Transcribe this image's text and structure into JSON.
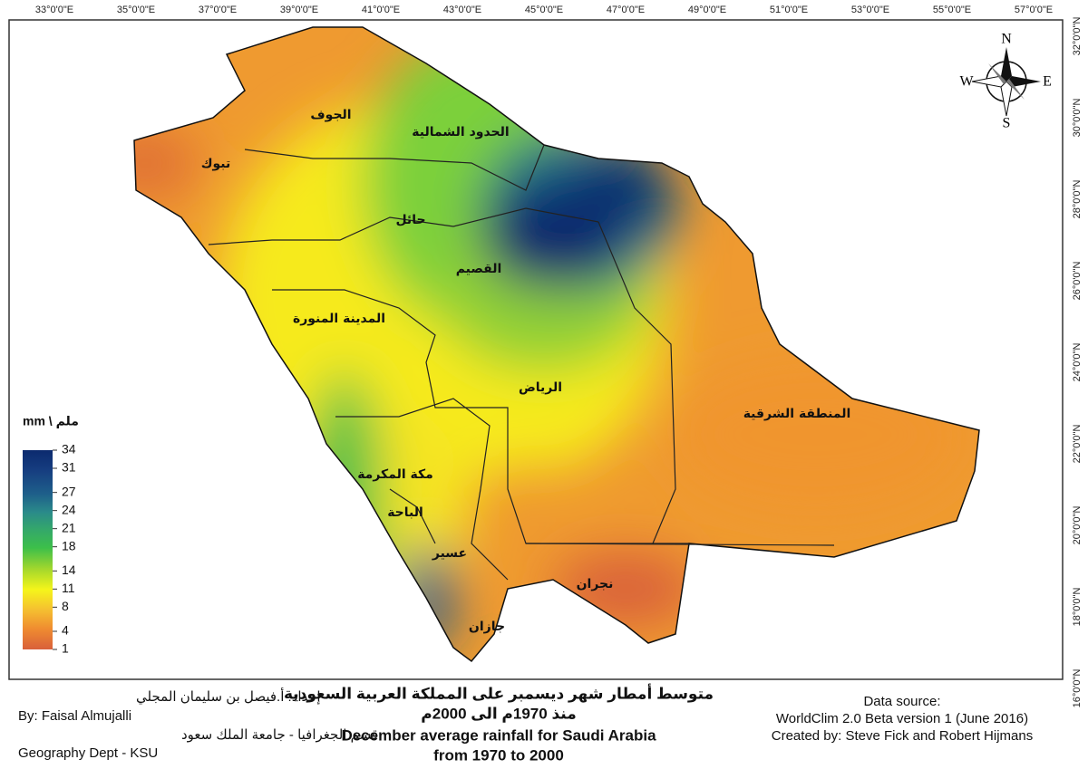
{
  "axes": {
    "longitudes": [
      "33°0'0\"E",
      "35°0'0\"E",
      "37°0'0\"E",
      "39°0'0\"E",
      "41°0'0\"E",
      "43°0'0\"E",
      "45°0'0\"E",
      "47°0'0\"E",
      "49°0'0\"E",
      "51°0'0\"E",
      "53°0'0\"E",
      "55°0'0\"E",
      "57°0'0\"E"
    ],
    "latitudes": [
      "32°0'0\"N",
      "30°0'0\"N",
      "28°0'0\"N",
      "26°0'0\"N",
      "24°0'0\"N",
      "22°0'0\"N",
      "20°0'0\"N",
      "18°0'0\"N",
      "16°0'0\"N"
    ]
  },
  "regions": [
    "الجوف",
    "تبوك",
    "الحدود الشمالية",
    "حائل",
    "القصيم",
    "المدينة المنورة",
    "الرياض",
    "المنطقة الشرقية",
    "مكة المكرمة",
    "الباحة",
    "عسير",
    "نجران",
    "جازان"
  ],
  "legend": {
    "title": "mm \\ ملم",
    "ticks": [
      34,
      31,
      27,
      24,
      21,
      18,
      14,
      11,
      8,
      4,
      1
    ]
  },
  "compass": {
    "n": "N",
    "s": "S",
    "e": "E",
    "w": "W"
  },
  "author": {
    "ar_name": "إعداد: أ.فيصل بن سليمان المجلي",
    "en_name": "By: Faisal Almujalli",
    "ar_dept": "قسم الجغرافيا - جامعة الملك سعود",
    "en_dept": "Geography Dept - KSU"
  },
  "title": {
    "ar_line1": "متوسط أمطار شهر ديسمبر على المملكة العربية السعودية",
    "ar_line2": "منذ 1970م الى 2000م",
    "en_line1": "December average rainfall for Saudi Arabia",
    "en_line2": "from 1970 to 2000"
  },
  "source": [
    "Data source:",
    "WorldClim 2.0 Beta version 1 (June 2016)",
    "Created by: Steve Fick and Robert Hijmans"
  ]
}
